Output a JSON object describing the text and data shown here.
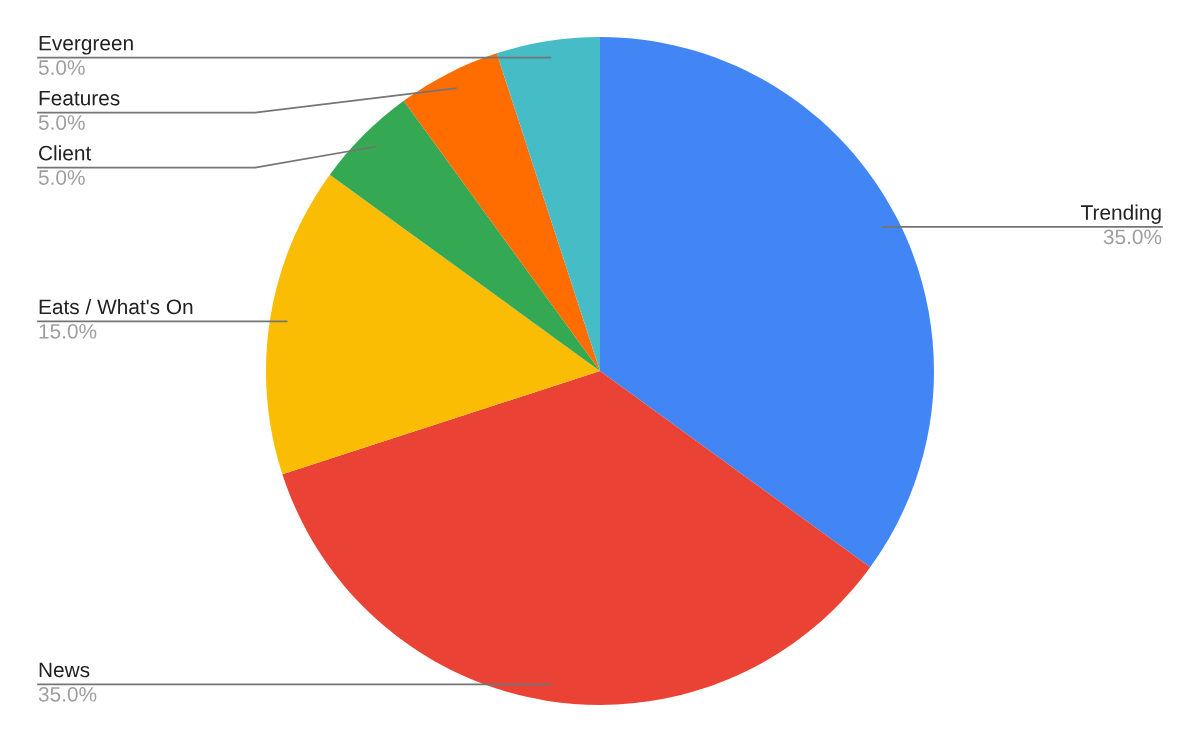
{
  "chart_data": {
    "type": "pie",
    "categories": [
      "Trending",
      "News",
      "Eats / What's On",
      "Client",
      "Features",
      "Evergreen"
    ],
    "values": [
      35,
      35,
      15,
      5,
      5,
      5
    ],
    "value_labels": [
      "35.0%",
      "35.0%",
      "15.0%",
      "5.0%",
      "5.0%",
      "5.0%"
    ],
    "colors": [
      "#4285f4",
      "#ea4335",
      "#fbbc04",
      "#34a853",
      "#ff6d01",
      "#46bdc6"
    ]
  }
}
